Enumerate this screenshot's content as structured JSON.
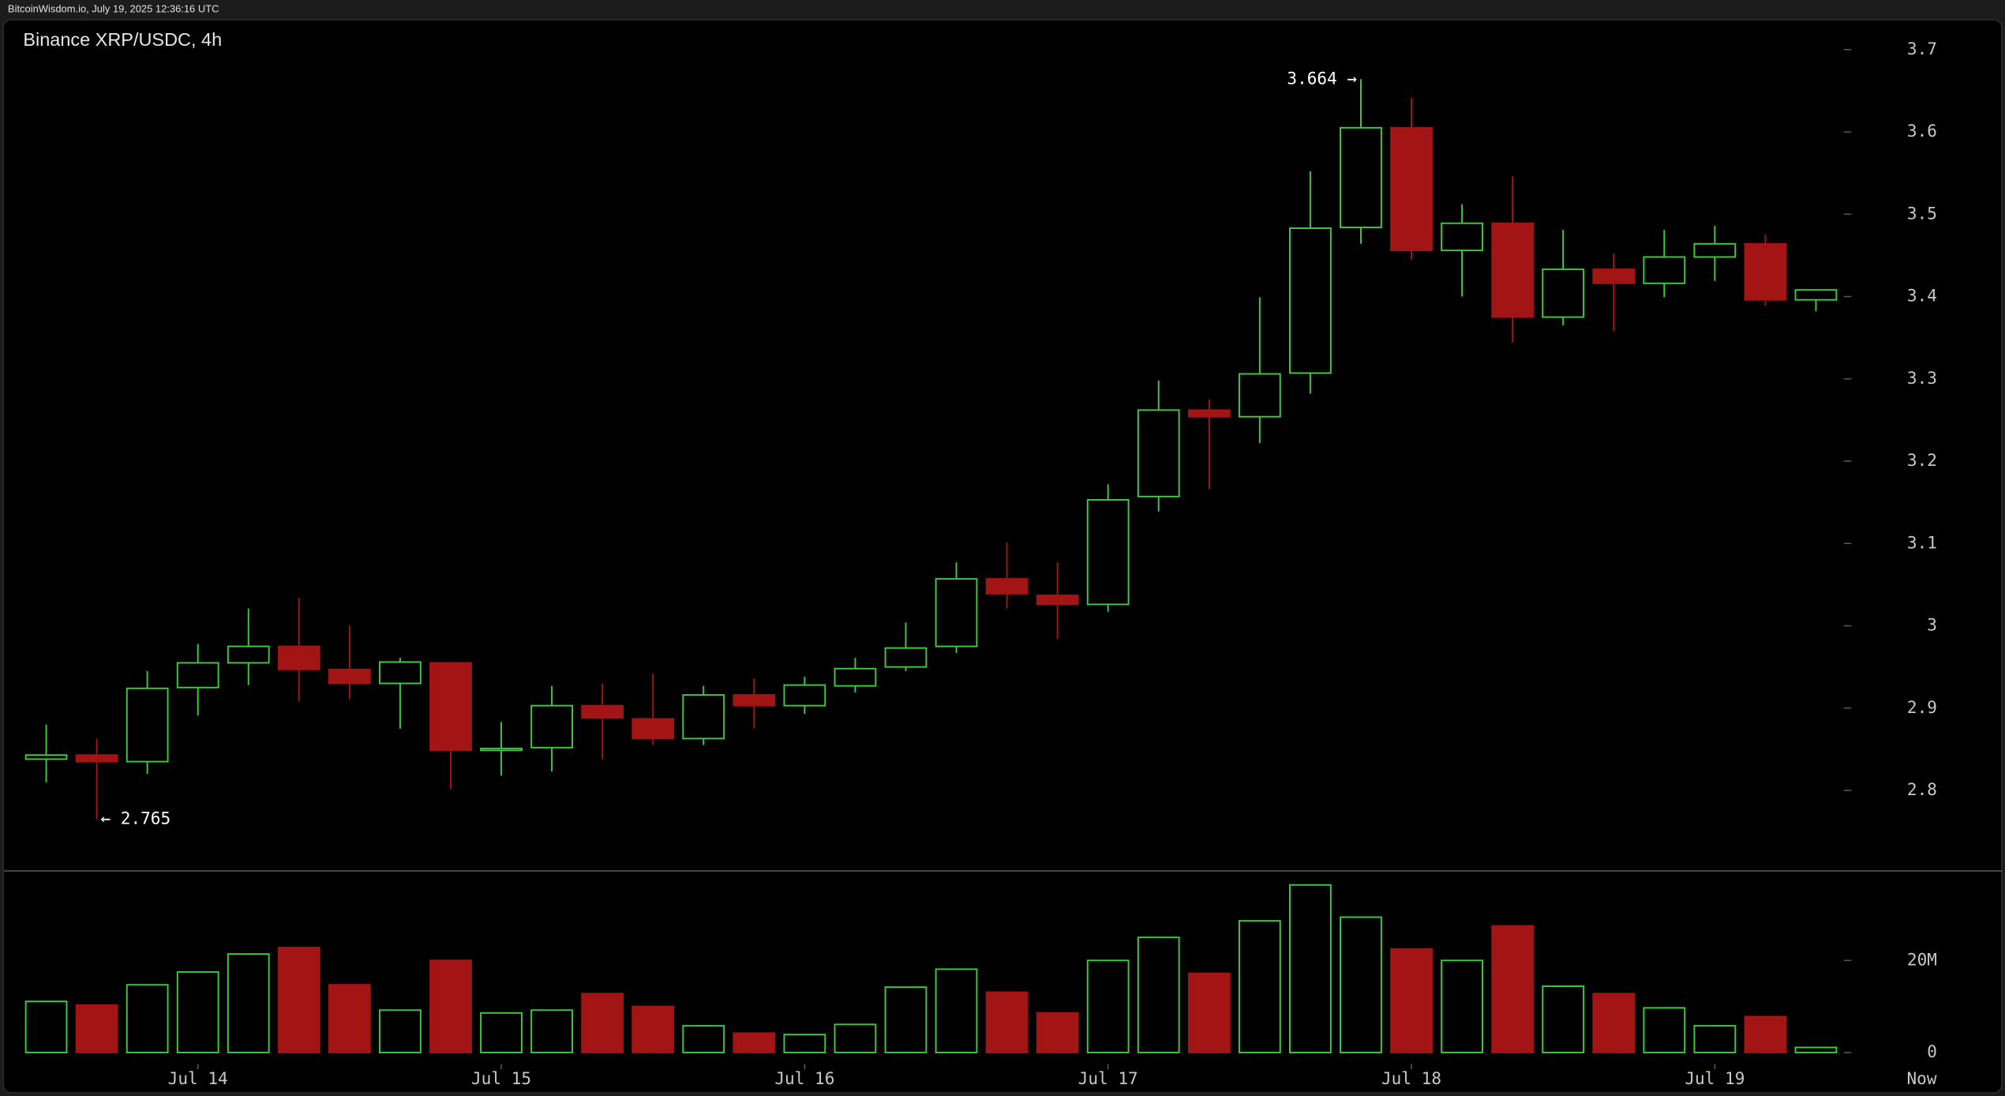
{
  "header": "BitcoinWisdom.io, July 19, 2025 12:36:16 UTC",
  "chart_data": {
    "type": "candlestick",
    "title": "Binance XRP/USDC, 4h",
    "categories": [
      null,
      null,
      null,
      "Jul 14",
      null,
      null,
      null,
      null,
      null,
      "Jul 15",
      null,
      null,
      null,
      null,
      null,
      "Jul 16",
      null,
      null,
      null,
      null,
      null,
      "Jul 17",
      null,
      null,
      null,
      null,
      null,
      "Jul 18",
      null,
      null,
      null,
      null,
      null,
      "Jul 19",
      null,
      null
    ],
    "open": [
      2.838,
      2.843,
      2.835,
      2.925,
      2.955,
      2.975,
      2.947,
      2.93,
      2.955,
      2.849,
      2.852,
      2.903,
      2.887,
      2.863,
      2.916,
      2.903,
      2.927,
      2.95,
      2.975,
      3.057,
      3.037,
      3.026,
      3.157,
      3.262,
      3.254,
      3.307,
      3.484,
      3.605,
      3.456,
      3.489,
      3.375,
      3.433,
      3.416,
      3.448,
      3.464,
      3.396
    ],
    "high": [
      2.88,
      2.863,
      2.945,
      2.978,
      3.021,
      3.034,
      3.0,
      2.961,
      2.956,
      2.883,
      2.927,
      2.93,
      2.942,
      2.927,
      2.936,
      2.938,
      2.961,
      3.004,
      3.077,
      3.101,
      3.077,
      3.172,
      3.298,
      3.275,
      3.399,
      3.552,
      3.664,
      3.641,
      3.512,
      3.546,
      3.481,
      3.452,
      3.481,
      3.486,
      3.475,
      3.408
    ],
    "low": [
      2.81,
      2.765,
      2.82,
      2.891,
      2.928,
      2.908,
      2.911,
      2.875,
      2.802,
      2.818,
      2.823,
      2.838,
      2.855,
      2.855,
      2.875,
      2.893,
      2.919,
      2.945,
      2.967,
      3.021,
      2.984,
      3.017,
      3.139,
      3.166,
      3.222,
      3.282,
      3.464,
      3.445,
      3.4,
      3.344,
      3.365,
      3.358,
      3.399,
      3.419,
      3.389,
      3.382
    ],
    "close": [
      2.843,
      2.835,
      2.924,
      2.955,
      2.975,
      2.947,
      2.93,
      2.956,
      2.849,
      2.851,
      2.903,
      2.888,
      2.863,
      2.916,
      2.903,
      2.928,
      2.948,
      2.973,
      3.057,
      3.039,
      3.026,
      3.153,
      3.262,
      3.254,
      3.306,
      3.483,
      3.605,
      3.456,
      3.489,
      3.375,
      3.433,
      3.416,
      3.448,
      3.464,
      3.396,
      3.408
    ],
    "volume": [
      11100000,
      10300000,
      14700000,
      17500000,
      21400000,
      22800000,
      14700000,
      9200000,
      20000000,
      8600000,
      9200000,
      12800000,
      10000000,
      5800000,
      4200000,
      3900000,
      6100000,
      14200000,
      18100000,
      13100000,
      8600000,
      20000000,
      25000000,
      17200000,
      28600000,
      36400000,
      29400000,
      22500000,
      20000000,
      27500000,
      14400000,
      12800000,
      9700000,
      5800000,
      7800000,
      1100000
    ],
    "up_color": "#3ec93e",
    "down_color": "#a31414",
    "ylim": [
      2.71,
      3.74
    ],
    "yticks": [
      2.8,
      2.9,
      {
        "value": 3.0,
        "label": "3"
      },
      3.1,
      3.2,
      3.3,
      3.4,
      3.5,
      3.6,
      3.7
    ],
    "y2lim": [
      0,
      40000000
    ],
    "y2ticks": [
      0,
      {
        "value": 20000000,
        "label": "20M"
      }
    ],
    "now_label": "Now",
    "annotations": [
      {
        "text": "3.664 →",
        "index": 26,
        "at": "high"
      },
      {
        "text": "← 2.765",
        "index": 1,
        "at": "low"
      }
    ]
  }
}
